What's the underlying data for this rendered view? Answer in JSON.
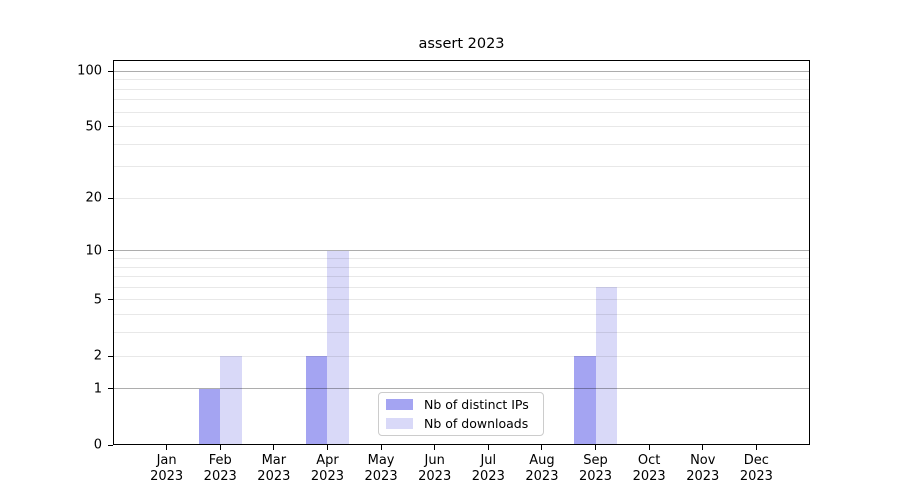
{
  "chart_data": {
    "type": "bar",
    "title": "assert 2023",
    "categories": [
      "Jan 2023",
      "Feb 2023",
      "Mar 2023",
      "Apr 2023",
      "May 2023",
      "Jun 2023",
      "Jul 2023",
      "Aug 2023",
      "Sep 2023",
      "Oct 2023",
      "Nov 2023",
      "Dec 2023"
    ],
    "series": [
      {
        "name": "Nb of distinct IPs",
        "color": "#a4a4f2",
        "values": [
          0,
          1,
          0,
          2,
          0,
          0,
          0,
          0,
          2,
          0,
          0,
          0
        ]
      },
      {
        "name": "Nb of downloads",
        "color": "#d9d9f8",
        "values": [
          0,
          2,
          0,
          10,
          0,
          0,
          0,
          0,
          6,
          0,
          0,
          0
        ]
      }
    ],
    "xlabel": "",
    "ylabel": "",
    "y_scale": "log1p",
    "ylim": [
      0,
      115
    ],
    "y_tick_labels": [
      100,
      50,
      20,
      10,
      5,
      2,
      1,
      0
    ],
    "grid_major": [
      1,
      10,
      100
    ],
    "grid_minor": [
      2,
      3,
      4,
      5,
      6,
      7,
      8,
      9,
      20,
      30,
      40,
      50,
      60,
      70,
      80,
      90
    ],
    "legend_position": "lower center",
    "grid_on": true,
    "colors": {
      "grid_major": "#b2b2b2",
      "grid_minor": "#e8e8e8",
      "axis": "#000000",
      "text": "#000000",
      "background": "#ffffff",
      "legend_border": "#cccccc"
    }
  }
}
